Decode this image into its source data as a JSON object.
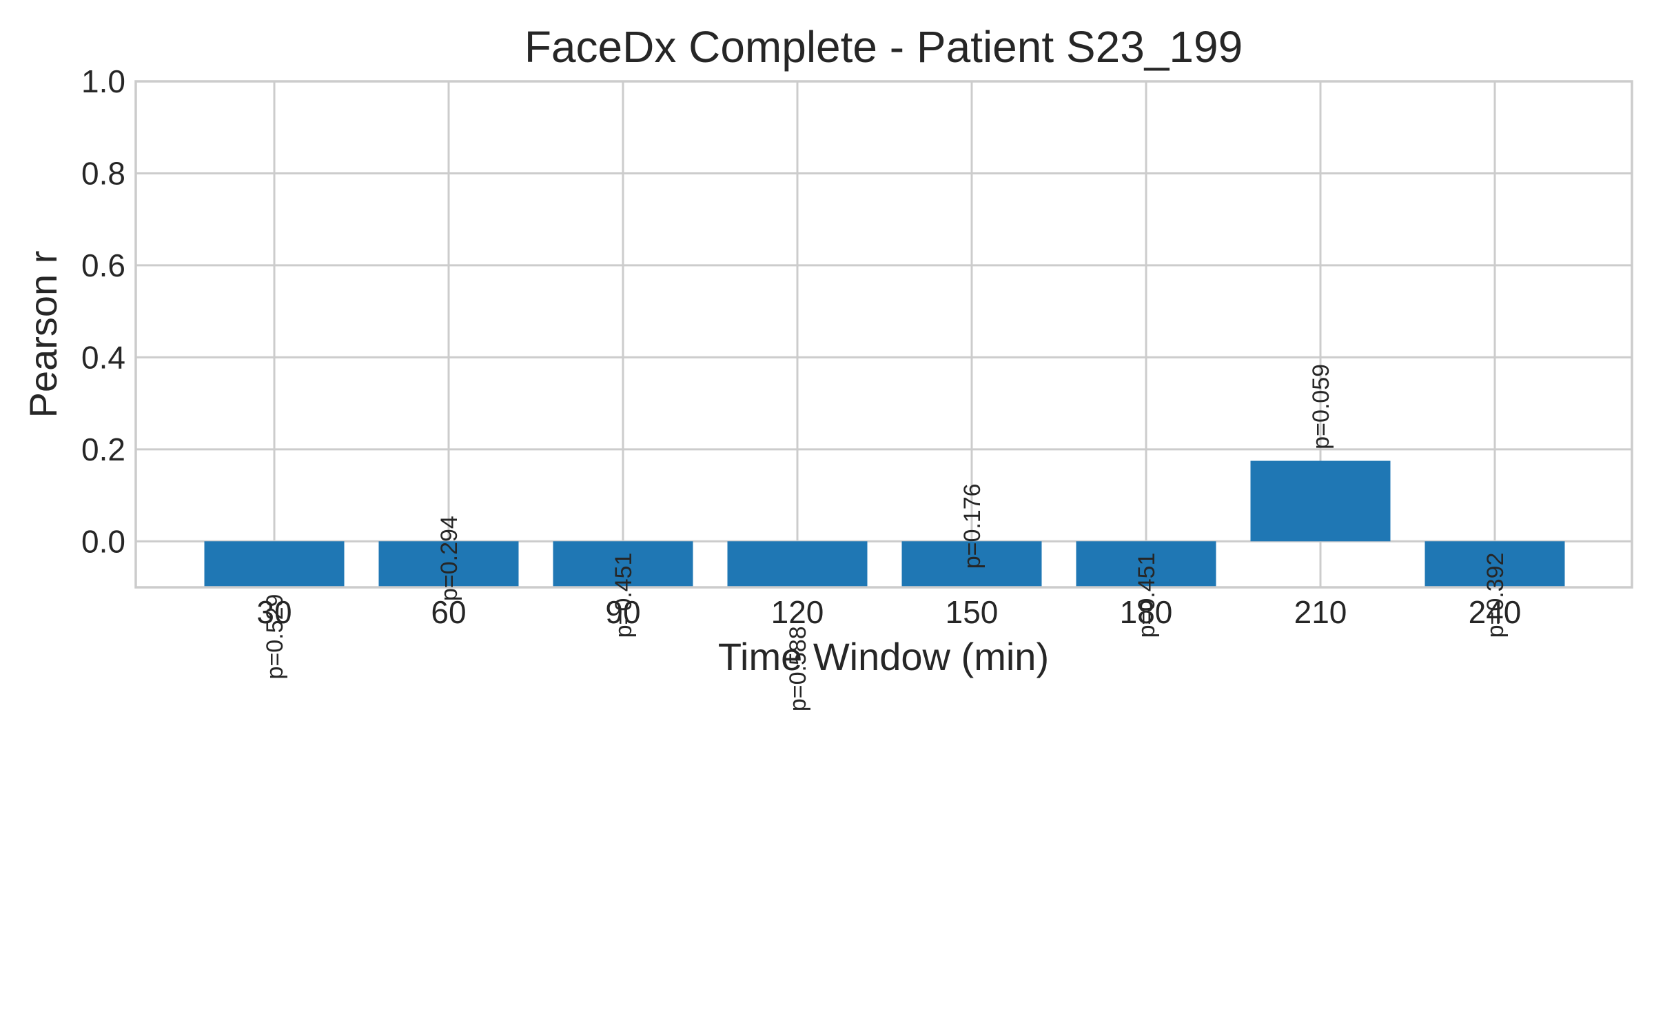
{
  "chart_data": {
    "type": "bar",
    "title": "FaceDx Complete - Patient S23_199",
    "xlabel": "Time Window (min)",
    "ylabel": "Pearson r",
    "categories": [
      "30",
      "60",
      "90",
      "120",
      "150",
      "180",
      "210",
      "240"
    ],
    "values": [
      -0.1,
      -0.1,
      -0.1,
      -0.1,
      -0.1,
      -0.1,
      0.175,
      -0.1
    ],
    "annotations": [
      "p=0.529",
      "p=0.294",
      "p=0.451",
      "p=0.588",
      "p=0.176",
      "p=0.451",
      "p=0.059",
      "p=0.392"
    ],
    "annotation_values": [
      -0.3,
      -0.13,
      -0.21,
      -0.37,
      -0.06,
      -0.21,
      0.2,
      -0.21
    ],
    "ylim": [
      -0.1,
      1.0
    ],
    "yticks": [
      "0.0",
      "0.2",
      "0.4",
      "0.6",
      "0.8",
      "1.0"
    ],
    "ytick_values": [
      0.0,
      0.2,
      0.4,
      0.6,
      0.8,
      1.0
    ],
    "grid": true,
    "bar_color": "#1f77b4"
  }
}
